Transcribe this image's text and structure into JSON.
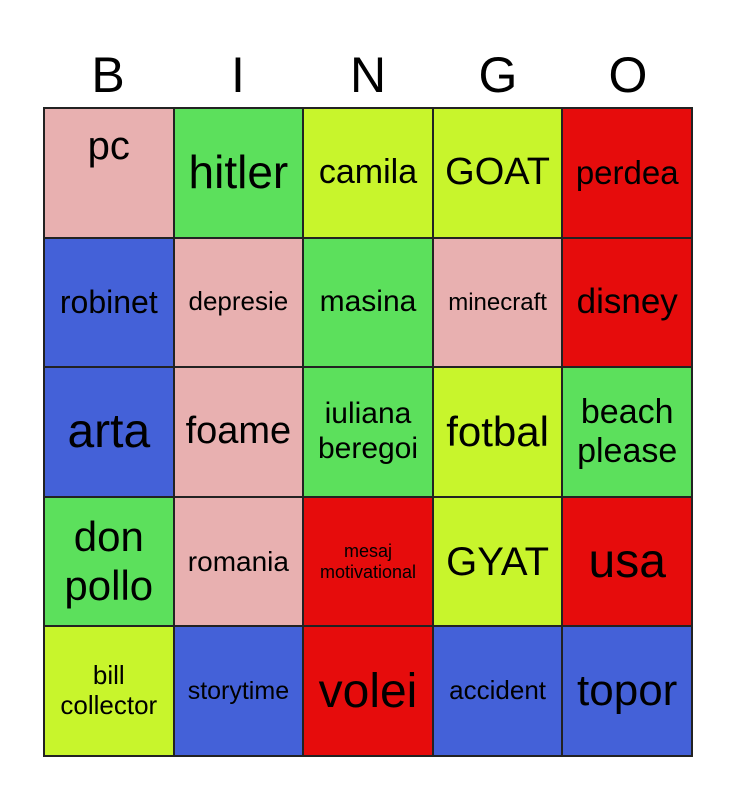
{
  "header": [
    "B",
    "I",
    "N",
    "G",
    "O"
  ],
  "colors": {
    "pink": "#e8b0b0",
    "green": "#5ce05c",
    "lime": "#c8f52c",
    "red": "#e60c0c",
    "blue": "#4461d8"
  },
  "cells": [
    {
      "text": "pc",
      "color": "pink"
    },
    {
      "text": "hitler",
      "color": "green"
    },
    {
      "text": "camila",
      "color": "lime"
    },
    {
      "text": "GOAT",
      "color": "lime"
    },
    {
      "text": "perdea",
      "color": "red"
    },
    {
      "text": "robinet",
      "color": "blue"
    },
    {
      "text": "depresie",
      "color": "pink"
    },
    {
      "text": "masina",
      "color": "green"
    },
    {
      "text": "minecraft",
      "color": "pink"
    },
    {
      "text": "disney",
      "color": "red"
    },
    {
      "text": "arta",
      "color": "blue"
    },
    {
      "text": "foame",
      "color": "pink"
    },
    {
      "text": "iuliana beregoi",
      "color": "green"
    },
    {
      "text": "fotbal",
      "color": "lime"
    },
    {
      "text": "beach please",
      "color": "green"
    },
    {
      "text": "don pollo",
      "color": "green"
    },
    {
      "text": "romania",
      "color": "pink"
    },
    {
      "text": "mesaj motivational",
      "color": "red"
    },
    {
      "text": "GYAT",
      "color": "lime"
    },
    {
      "text": "usa",
      "color": "red"
    },
    {
      "text": "bill collector",
      "color": "lime"
    },
    {
      "text": "storytime",
      "color": "blue"
    },
    {
      "text": "volei",
      "color": "red"
    },
    {
      "text": "accident",
      "color": "blue"
    },
    {
      "text": "topor",
      "color": "blue"
    }
  ]
}
